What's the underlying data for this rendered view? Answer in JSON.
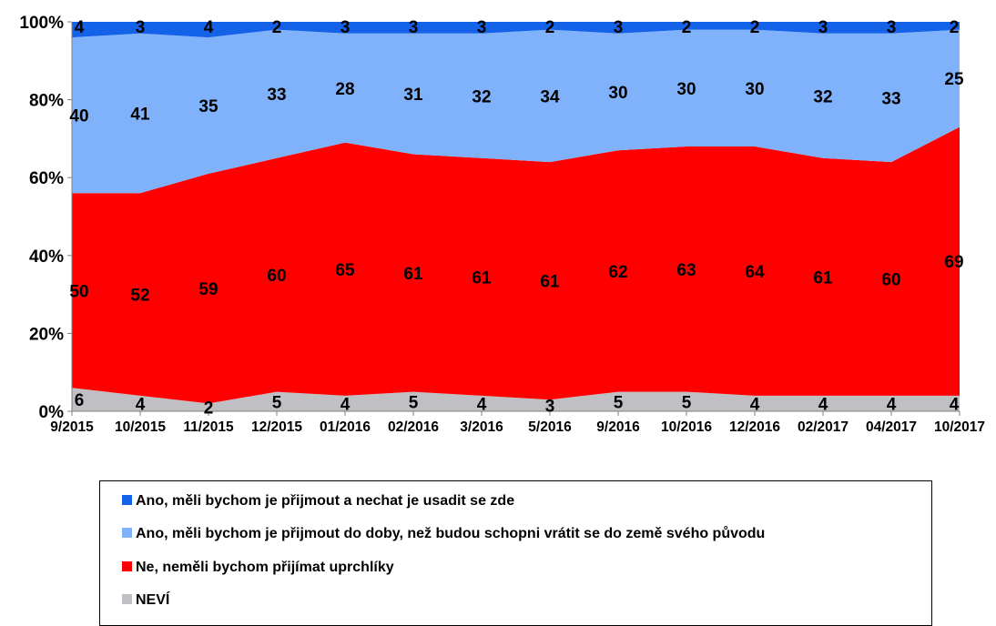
{
  "chart_data": {
    "type": "area",
    "stacked": true,
    "percent": true,
    "categories": [
      "9/2015",
      "10/2015",
      "11/2015",
      "12/2015",
      "01/2016",
      "02/2016",
      "3/2016",
      "5/2016",
      "9/2016",
      "10/2016",
      "12/2016",
      "02/2017",
      "04/2017",
      "10/2017"
    ],
    "y_ticks": [
      "0%",
      "20%",
      "40%",
      "60%",
      "80%",
      "100%"
    ],
    "ylim": [
      0,
      100
    ],
    "grid": false,
    "legend_position": "bottom",
    "series": [
      {
        "name": "NEVÍ",
        "color": "#c0c0c4",
        "values": [
          6,
          4,
          2,
          5,
          4,
          5,
          4,
          3,
          5,
          5,
          4,
          4,
          4,
          4
        ]
      },
      {
        "name": "Ne, neměli bychom přijímat uprchlíky",
        "color": "#ff0000",
        "values": [
          50,
          52,
          59,
          60,
          65,
          61,
          61,
          61,
          62,
          63,
          64,
          61,
          60,
          69
        ]
      },
      {
        "name": "Ano, měli bychom je přijmout do doby, než budou schopni vrátit se do země svého původu",
        "color": "#7fb2fb",
        "values": [
          40,
          41,
          35,
          33,
          28,
          31,
          32,
          34,
          30,
          30,
          30,
          32,
          33,
          25
        ]
      },
      {
        "name": "Ano, měli bychom je přijmout a nechat je usadit se zde",
        "color": "#1462e8",
        "values": [
          4,
          3,
          4,
          2,
          3,
          3,
          3,
          2,
          3,
          2,
          2,
          3,
          3,
          2
        ]
      }
    ]
  },
  "legend": [
    {
      "label": "Ano, měli bychom je přijmout a nechat je usadit se zde",
      "color": "#1462e8"
    },
    {
      "label": "Ano, měli bychom je přijmout do doby, než budou schopni vrátit se do země svého původu",
      "color": "#7fb2fb"
    },
    {
      "label": "Ne, neměli bychom přijímat uprchlíky",
      "color": "#ff0000"
    },
    {
      "label": "NEVÍ",
      "color": "#c0c0c4"
    }
  ]
}
